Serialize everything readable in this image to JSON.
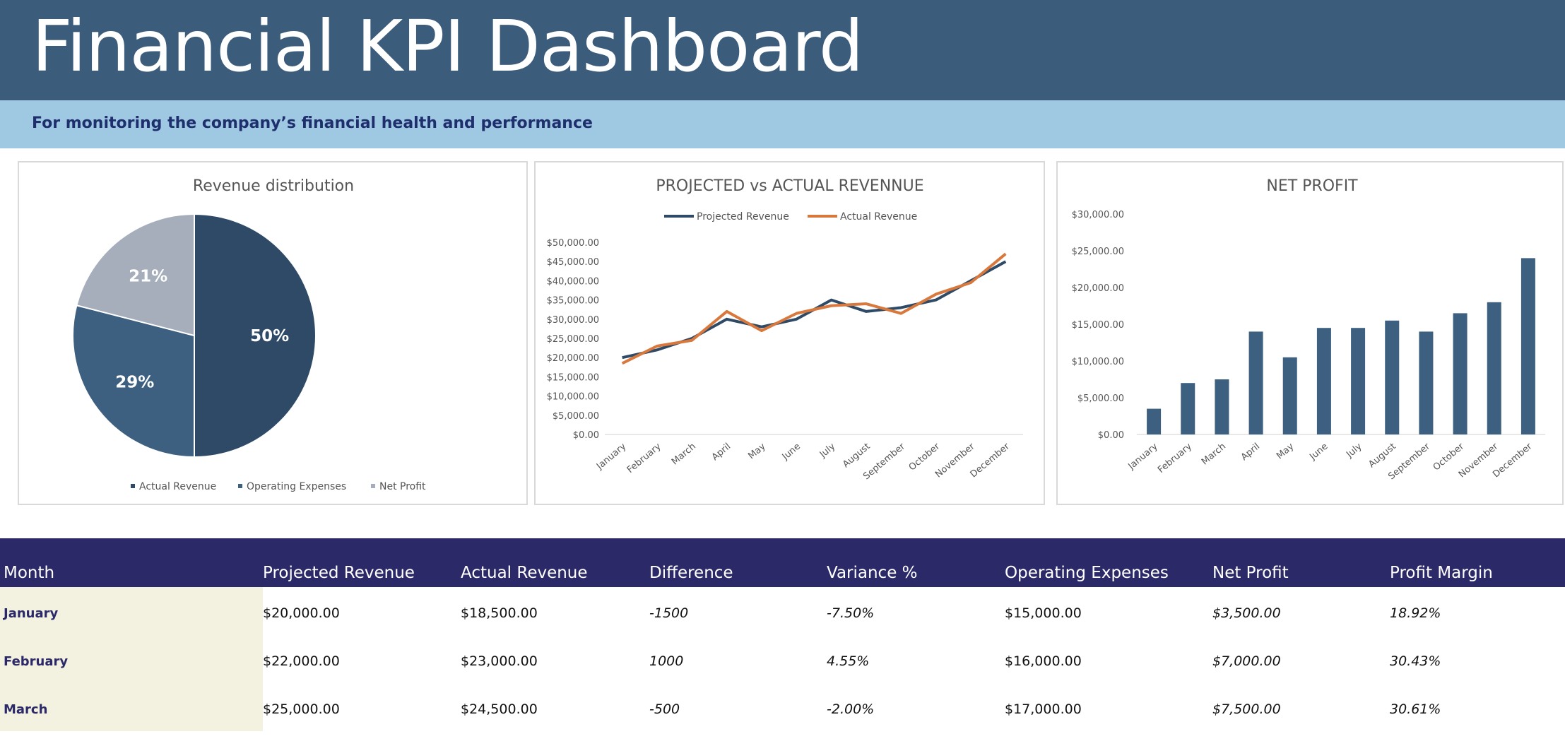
{
  "header": {
    "title": "Financial KPI Dashboard",
    "subtitle": "For monitoring the company’s financial health and performance"
  },
  "colors": {
    "title_bg": "#3c5c7c",
    "subtitle_bg": "#9fc8e2",
    "table_header_bg": "#2c2969",
    "month_cell_bg": "#f3f2e1",
    "dark_blue": "#2e4a66",
    "mid_blue": "#3d5f80",
    "gray": "#a6aebb",
    "orange": "#d9783d"
  },
  "chart_data": [
    {
      "type": "pie",
      "title": "Revenue distribution",
      "labels": [
        "Actual Revenue",
        "Operating Expenses",
        "Net Profit"
      ],
      "values": [
        50,
        29,
        21
      ],
      "value_labels": [
        "50%",
        "29%",
        "21%"
      ],
      "colors": [
        "#2e4a66",
        "#3d5f80",
        "#a6aebb"
      ],
      "legend": "bottom"
    },
    {
      "type": "line",
      "title": "PROJECTED vs ACTUAL REVENNUE",
      "categories": [
        "January",
        "February",
        "March",
        "April",
        "May",
        "June",
        "July",
        "August",
        "September",
        "October",
        "November",
        "December"
      ],
      "series": [
        {
          "name": "Projected Revenue",
          "color": "#2e4a66",
          "values": [
            20000,
            22000,
            25000,
            30000,
            28000,
            30000,
            35000,
            32000,
            33000,
            35000,
            40000,
            45000
          ]
        },
        {
          "name": "Actual Revenue",
          "color": "#d9783d",
          "values": [
            18500,
            23000,
            24500,
            32000,
            27000,
            31500,
            33500,
            34000,
            31500,
            36500,
            39500,
            47000
          ]
        }
      ],
      "ylim": [
        0,
        50000
      ],
      "yticks": [
        "$0.00",
        "$5,000.00",
        "$10,000.00",
        "$15,000.00",
        "$20,000.00",
        "$25,000.00",
        "$30,000.00",
        "$35,000.00",
        "$40,000.00",
        "$45,000.00",
        "$50,000.00"
      ],
      "legend": "top"
    },
    {
      "type": "bar",
      "title": "NET PROFIT",
      "categories": [
        "January",
        "February",
        "March",
        "April",
        "May",
        "June",
        "July",
        "August",
        "September",
        "October",
        "November",
        "December"
      ],
      "values": [
        3500,
        7000,
        7500,
        14000,
        10500,
        14500,
        14500,
        15500,
        14000,
        16500,
        18000,
        24000
      ],
      "color": "#3d5f80",
      "ylim": [
        0,
        30000
      ],
      "yticks": [
        "$0.00",
        "$5,000.00",
        "$10,000.00",
        "$15,000.00",
        "$20,000.00",
        "$25,000.00",
        "$30,000.00"
      ]
    }
  ],
  "table": {
    "columns": [
      "Month",
      "Projected Revenue",
      "Actual Revenue",
      "Difference",
      "Variance %",
      "Operating Expenses",
      "Net Profit",
      "Profit Margin"
    ],
    "rows": [
      [
        "January",
        "$20,000.00",
        "$18,500.00",
        "-1500",
        "-7.50%",
        "$15,000.00",
        "$3,500.00",
        "18.92%"
      ],
      [
        "February",
        "$22,000.00",
        "$23,000.00",
        "1000",
        "4.55%",
        "$16,000.00",
        "$7,000.00",
        "30.43%"
      ],
      [
        "March",
        "$25,000.00",
        "$24,500.00",
        "-500",
        "-2.00%",
        "$17,000.00",
        "$7,500.00",
        "30.61%"
      ]
    ]
  }
}
